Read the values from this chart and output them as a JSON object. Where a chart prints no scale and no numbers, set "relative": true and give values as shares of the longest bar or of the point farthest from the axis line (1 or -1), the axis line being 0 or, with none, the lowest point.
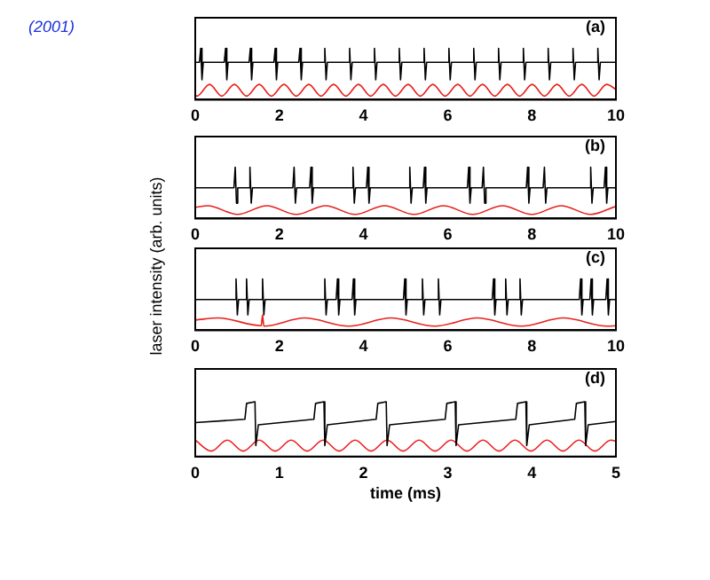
{
  "chart_data": [
    {
      "type": "line",
      "relative": true,
      "annotations": [
        "(a)",
        "(2001)"
      ],
      "xlim": [
        0,
        10
      ],
      "xticks": [
        0,
        2,
        4,
        6,
        8,
        10
      ],
      "tick_labels": "x",
      "grid": false,
      "legend": false,
      "marker": "none",
      "line_style": "solid",
      "series": [
        {
          "color": "#000000",
          "x": [
            0,
            0.1,
            0.13,
            0.16,
            0.19,
            0.69,
            0.72,
            0.75,
            0.78,
            1.28,
            1.31,
            1.34,
            1.37,
            1.87,
            1.9,
            1.93,
            1.96,
            2.46,
            2.49,
            2.52,
            2.55,
            3.05,
            3.08,
            3.11,
            3.14,
            3.64,
            3.67,
            3.7,
            3.73,
            4.23,
            4.26,
            4.29,
            4.32,
            4.82,
            4.85,
            4.88,
            4.91,
            5.41,
            5.44,
            5.47,
            5.5,
            6,
            6.03,
            6.06,
            6.09,
            6.59,
            6.62,
            6.65,
            6.68,
            7.18,
            7.21,
            7.24,
            7.27,
            7.77,
            7.8,
            7.83,
            7.86,
            8.36,
            8.39,
            8.42,
            8.45,
            8.95,
            8.98,
            9.01,
            9.04,
            9.54,
            9.57,
            9.6,
            9.63,
            10
          ],
          "values": [
            0.73,
            0.73,
            1,
            0.39,
            0.73,
            0.73,
            1,
            0.39,
            0.73,
            0.73,
            1,
            0.39,
            0.73,
            0.73,
            1,
            0.39,
            0.73,
            0.73,
            1,
            0.39,
            0.73,
            0.73,
            1,
            0.39,
            0.73,
            0.73,
            1,
            0.39,
            0.73,
            0.73,
            1,
            0.39,
            0.73,
            0.73,
            1,
            0.39,
            0.73,
            0.73,
            1,
            0.39,
            0.73,
            0.73,
            1,
            0.39,
            0.73,
            0.73,
            1,
            0.39,
            0.73,
            0.73,
            1,
            0.39,
            0.73,
            0.73,
            1,
            0.39,
            0.73,
            0.73,
            1,
            0.39,
            0.73,
            0.73,
            1,
            0.39,
            0.73,
            0.73,
            1,
            0.39,
            0.73,
            0.73
          ]
        },
        {
          "color": "#e8201c",
          "x": [
            0,
            0.04,
            0.34,
            0.63,
            0.93,
            1.22,
            1.52,
            1.81,
            2.11,
            2.4,
            2.7,
            2.99,
            3.29,
            3.58,
            3.88,
            4.17,
            4.47,
            4.76,
            5.06,
            5.35,
            5.65,
            5.94,
            6.24,
            6.53,
            6.83,
            7.12,
            7.42,
            7.71,
            8.01,
            8.3,
            8.6,
            8.89,
            9.19,
            9.48,
            9.78,
            10
          ],
          "values": [
            0.09,
            0.07,
            0.3,
            0.07,
            0.3,
            0.07,
            0.3,
            0.07,
            0.3,
            0.07,
            0.3,
            0.07,
            0.3,
            0.07,
            0.3,
            0.07,
            0.3,
            0.07,
            0.3,
            0.07,
            0.3,
            0.07,
            0.3,
            0.07,
            0.3,
            0.07,
            0.3,
            0.07,
            0.3,
            0.07,
            0.3,
            0.07,
            0.3,
            0.07,
            0.3,
            0.2
          ]
        }
      ]
    },
    {
      "type": "line",
      "relative": true,
      "ylabel": "laser intensity (arb. units)",
      "annotations": [
        "(b)"
      ],
      "xlim": [
        0,
        10
      ],
      "xticks": [
        0,
        2,
        4,
        6,
        8,
        10
      ],
      "tick_labels": "x",
      "grid": false,
      "legend": false,
      "marker": "none",
      "line_style": "solid",
      "series": [
        {
          "color": "#000000",
          "x": [
            0,
            0.92,
            0.95,
            0.98,
            1.01,
            1.27,
            1.3,
            1.33,
            1.36,
            2.32,
            2.35,
            2.38,
            2.41,
            2.72,
            2.75,
            2.78,
            2.81,
            3.72,
            3.75,
            3.78,
            3.81,
            4.07,
            4.1,
            4.13,
            4.16,
            5.07,
            5.1,
            5.13,
            5.16,
            5.42,
            5.45,
            5.48,
            5.51,
            6.47,
            6.5,
            6.53,
            6.56,
            6.82,
            6.85,
            6.88,
            6.91,
            7.87,
            7.9,
            7.93,
            7.96,
            8.27,
            8.3,
            8.33,
            8.36,
            9.37,
            9.4,
            9.43,
            9.46,
            9.72,
            9.75,
            9.78,
            9.81,
            10
          ],
          "values": [
            0.6,
            0.6,
            1,
            0.3,
            0.6,
            0.6,
            1,
            0.3,
            0.6,
            0.6,
            1,
            0.3,
            0.6,
            0.6,
            1,
            0.3,
            0.6,
            0.6,
            1,
            0.3,
            0.6,
            0.6,
            1,
            0.3,
            0.6,
            0.6,
            1,
            0.3,
            0.6,
            0.6,
            1,
            0.3,
            0.6,
            0.6,
            1,
            0.3,
            0.6,
            0.6,
            1,
            0.3,
            0.6,
            0.6,
            1,
            0.3,
            0.6,
            0.6,
            1,
            0.3,
            0.6,
            0.6,
            1,
            0.3,
            0.6,
            0.6,
            1,
            0.3,
            0.6,
            0.6
          ]
        },
        {
          "color": "#e8201c",
          "x": [
            0,
            0.3,
            1,
            1.7,
            2.4,
            3.1,
            3.8,
            4.5,
            5.2,
            5.9,
            6.6,
            7.3,
            8,
            8.7,
            9.4,
            10
          ],
          "values": [
            0.22,
            0.25,
            0.08,
            0.25,
            0.08,
            0.25,
            0.08,
            0.25,
            0.08,
            0.25,
            0.08,
            0.25,
            0.08,
            0.25,
            0.08,
            0.24
          ]
        }
      ]
    },
    {
      "type": "line",
      "relative": true,
      "annotations": [
        "(c)"
      ],
      "xlim": [
        0,
        10
      ],
      "xticks": [
        0,
        2,
        4,
        6,
        8,
        10
      ],
      "tick_labels": "x",
      "grid": false,
      "legend": false,
      "marker": "none",
      "line_style": "solid",
      "series": [
        {
          "color": "#000000",
          "x": [
            0,
            0.94,
            0.97,
            1,
            1.03,
            1.19,
            1.22,
            1.25,
            1.28,
            1.57,
            1.6,
            1.63,
            1.66,
            3.05,
            3.08,
            3.11,
            3.14,
            3.35,
            3.38,
            3.41,
            3.44,
            3.73,
            3.76,
            3.79,
            3.82,
            4.95,
            4.98,
            5.01,
            5.04,
            5.37,
            5.4,
            5.43,
            5.46,
            5.75,
            5.78,
            5.81,
            5.84,
            7.06,
            7.09,
            7.12,
            7.15,
            7.35,
            7.38,
            7.41,
            7.44,
            7.69,
            7.72,
            7.75,
            7.78,
            9.13,
            9.16,
            9.19,
            9.22,
            9.38,
            9.41,
            9.44,
            9.47,
            9.76,
            9.79,
            9.82,
            9.85,
            10
          ],
          "values": [
            0.6,
            0.6,
            1,
            0.3,
            0.6,
            0.6,
            1,
            0.3,
            0.6,
            0.6,
            1,
            0.3,
            0.6,
            0.6,
            1,
            0.3,
            0.6,
            0.6,
            1,
            0.3,
            0.6,
            0.6,
            1,
            0.3,
            0.6,
            0.6,
            1,
            0.3,
            0.6,
            0.6,
            1,
            0.3,
            0.6,
            0.6,
            1,
            0.3,
            0.6,
            0.6,
            1,
            0.3,
            0.6,
            0.6,
            1,
            0.3,
            0.6,
            0.6,
            1,
            0.3,
            0.6,
            0.6,
            1,
            0.3,
            0.6,
            0.6,
            1,
            0.3,
            0.6,
            0.6,
            1,
            0.3,
            0.6,
            0.6
          ]
        },
        {
          "color": "#e8201c",
          "x": [
            0,
            0.55,
            1.57,
            1.6,
            1.63,
            2.6,
            3.65,
            4.65,
            5.7,
            6.7,
            7.75,
            8.75,
            9.8,
            10
          ],
          "values": [
            0.2,
            0.24,
            0.09,
            0.3,
            0.08,
            0.24,
            0.08,
            0.24,
            0.08,
            0.24,
            0.08,
            0.24,
            0.08,
            0.09
          ]
        }
      ]
    },
    {
      "type": "line",
      "relative": true,
      "xlabel": "time (ms)",
      "annotations": [
        "(d)"
      ],
      "xlim": [
        0,
        5
      ],
      "xticks": [
        0,
        1,
        2,
        3,
        4,
        5
      ],
      "tick_labels": "x",
      "grid": false,
      "legend": false,
      "marker": "none",
      "line_style": "solid",
      "series": [
        {
          "color": "#000000",
          "x": [
            0,
            0.59,
            0.61,
            0.71,
            0.72,
            0.75,
            1.41,
            1.43,
            1.53,
            1.54,
            1.57,
            2.15,
            2.17,
            2.27,
            2.28,
            2.31,
            2.97,
            2.99,
            3.09,
            3.1,
            3.13,
            3.81,
            3.83,
            3.93,
            3.94,
            3.97,
            4.51,
            4.53,
            4.63,
            4.64,
            4.67,
            5
          ],
          "values": [
            0.62,
            0.68,
            0.97,
            1,
            0.2,
            0.58,
            0.68,
            0.97,
            1,
            0.2,
            0.58,
            0.68,
            0.97,
            1,
            0.2,
            0.58,
            0.68,
            0.97,
            1,
            0.2,
            0.58,
            0.68,
            0.97,
            1,
            0.2,
            0.58,
            0.68,
            0.97,
            1,
            0.2,
            0.58,
            0.64
          ]
        },
        {
          "color": "#e8201c",
          "x": [
            0,
            0.19,
            0.38,
            0.57,
            0.76,
            0.95,
            1.14,
            1.33,
            1.52,
            1.71,
            1.9,
            2.09,
            2.28,
            2.47,
            2.66,
            2.85,
            3.04,
            3.23,
            3.42,
            3.61,
            3.8,
            3.99,
            4.18,
            4.37,
            4.56,
            4.75,
            4.94,
            5
          ],
          "values": [
            0.3,
            0.1,
            0.3,
            0.1,
            0.3,
            0.1,
            0.3,
            0.1,
            0.3,
            0.1,
            0.3,
            0.1,
            0.3,
            0.1,
            0.3,
            0.1,
            0.3,
            0.1,
            0.3,
            0.1,
            0.3,
            0.1,
            0.3,
            0.1,
            0.3,
            0.1,
            0.3,
            0.28
          ]
        }
      ]
    }
  ]
}
